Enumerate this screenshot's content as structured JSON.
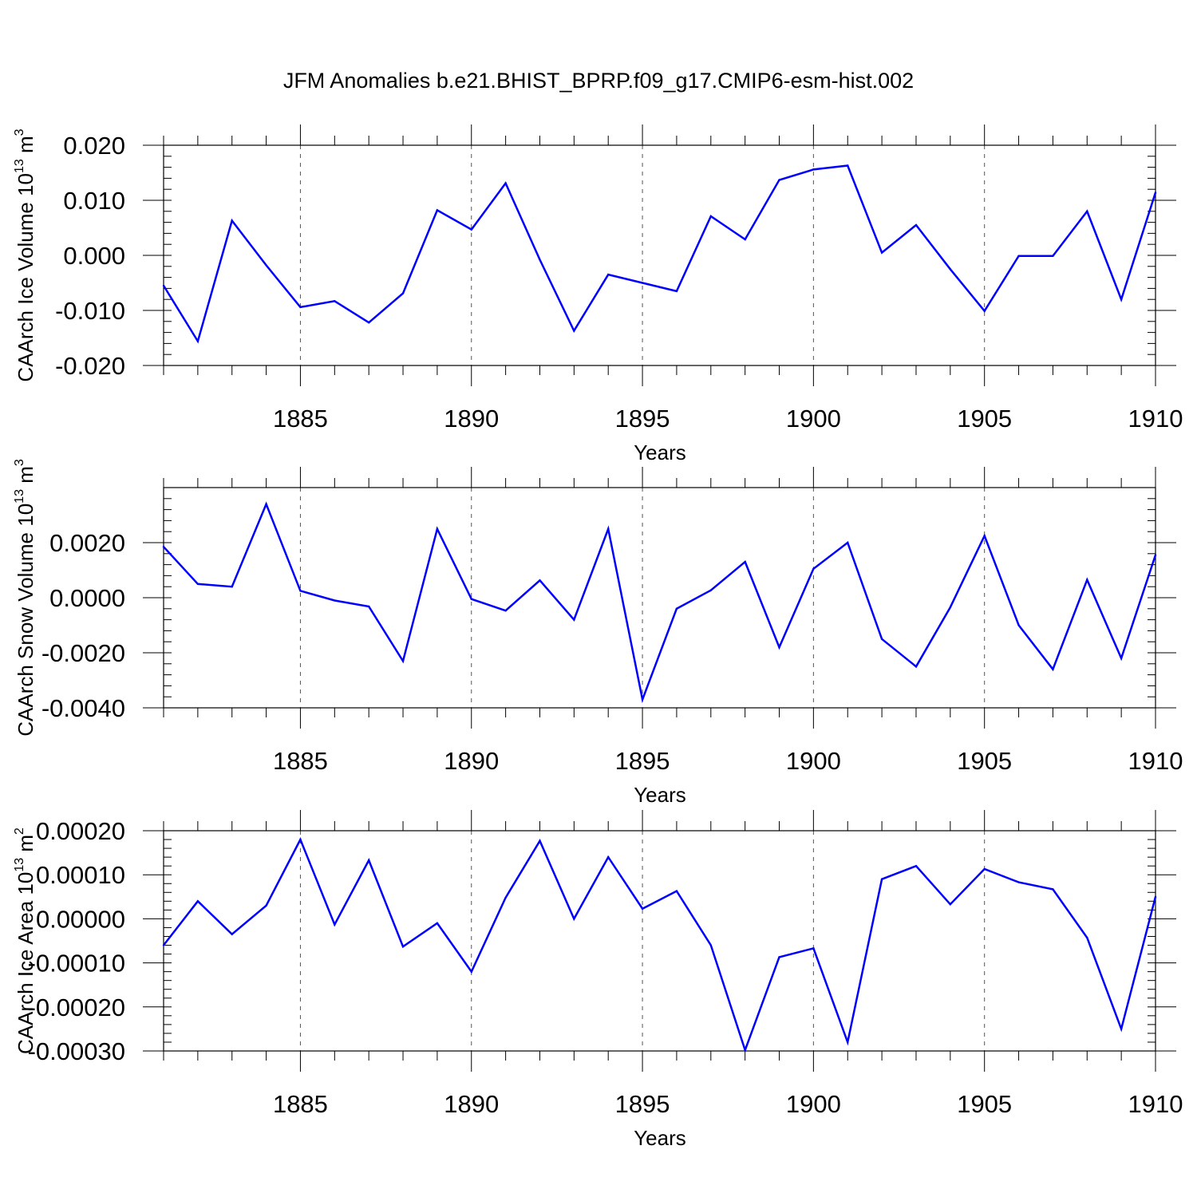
{
  "title": "JFM Anomalies b.e21.BHIST_BPRP.f09_g17.CMIP6-esm-hist.002",
  "colors": {
    "series": "#0000ff",
    "axis": "#000000",
    "grid": "#555555"
  },
  "chart_data": [
    {
      "type": "line",
      "ylabel": "CAArch Ice Volume 10",
      "ylabel_sup": "13",
      "ylabel_unit": "m",
      "ylabel_unit_sup": "3",
      "xlabel": "Years",
      "xlim": [
        1881,
        1910
      ],
      "ylim": [
        -0.02,
        0.02
      ],
      "xticks": [
        1885,
        1890,
        1895,
        1900,
        1905,
        1910
      ],
      "xtick_labels": [
        "1885",
        "1890",
        "1895",
        "1900",
        "1905",
        "1910"
      ],
      "yticks": [
        -0.02,
        -0.01,
        0.0,
        0.01,
        0.02
      ],
      "ytick_labels": [
        "-0.020",
        "-0.010",
        "0.000",
        "0.010",
        "0.020"
      ],
      "x": [
        1881,
        1882,
        1883,
        1884,
        1885,
        1886,
        1887,
        1888,
        1889,
        1890,
        1891,
        1892,
        1893,
        1894,
        1895,
        1896,
        1897,
        1898,
        1899,
        1900,
        1901,
        1902,
        1903,
        1904,
        1905,
        1906,
        1907,
        1908,
        1909,
        1910
      ],
      "values": [
        -0.0055,
        -0.0156,
        0.0063,
        -0.0018,
        -0.0094,
        -0.0083,
        -0.0122,
        -0.0069,
        0.0082,
        0.0047,
        0.0131,
        -0.0008,
        -0.0137,
        -0.0035,
        -0.005,
        -0.0065,
        0.0071,
        0.0029,
        0.0137,
        0.0156,
        0.0163,
        0.0005,
        0.0055,
        -0.0025,
        -0.0101,
        -0.0001,
        -0.0001,
        0.008,
        -0.008,
        0.0114
      ]
    },
    {
      "type": "line",
      "ylabel": "CAArch Snow Volume 10",
      "ylabel_sup": "13",
      "ylabel_unit": "m",
      "ylabel_unit_sup": "3",
      "xlabel": "Years",
      "xlim": [
        1881,
        1910
      ],
      "ylim": [
        -0.004,
        0.004
      ],
      "xticks": [
        1885,
        1890,
        1895,
        1900,
        1905,
        1910
      ],
      "xtick_labels": [
        "1885",
        "1890",
        "1895",
        "1900",
        "1905",
        "1910"
      ],
      "yticks": [
        -0.004,
        -0.002,
        0.0,
        0.002
      ],
      "ytick_labels": [
        "-0.0040",
        "-0.0020",
        "0.0000",
        "0.0020"
      ],
      "x": [
        1881,
        1882,
        1883,
        1884,
        1885,
        1886,
        1887,
        1888,
        1889,
        1890,
        1891,
        1892,
        1893,
        1894,
        1895,
        1896,
        1897,
        1898,
        1899,
        1900,
        1901,
        1902,
        1903,
        1904,
        1905,
        1906,
        1907,
        1908,
        1909,
        1910
      ],
      "values": [
        0.00185,
        0.0005,
        0.0004,
        0.0034,
        0.00025,
        -0.0001,
        -0.00032,
        -0.0023,
        0.0025,
        -5e-05,
        -0.00047,
        0.00063,
        -0.0008,
        0.0025,
        -0.0037,
        -0.0004,
        0.00027,
        0.0013,
        -0.0018,
        0.00105,
        0.002,
        -0.0015,
        -0.0025,
        -0.00035,
        0.00225,
        -0.001,
        -0.0026,
        0.00065,
        -0.0022,
        0.00155
      ]
    },
    {
      "type": "line",
      "ylabel": "CAArch Ice Area 10",
      "ylabel_sup": "13",
      "ylabel_unit": "m",
      "ylabel_unit_sup": "2",
      "xlabel": "Years",
      "xlim": [
        1881,
        1910
      ],
      "ylim": [
        -0.0003,
        0.0002
      ],
      "xticks": [
        1885,
        1890,
        1895,
        1900,
        1905,
        1910
      ],
      "xtick_labels": [
        "1885",
        "1890",
        "1895",
        "1900",
        "1905",
        "1910"
      ],
      "yticks": [
        -0.0003,
        -0.0002,
        -0.0001,
        0.0,
        0.0001,
        0.0002
      ],
      "ytick_labels": [
        "-0.00030",
        "-0.00020",
        "-0.00010",
        "0.00000",
        "0.00010",
        "0.00020"
      ],
      "x": [
        1881,
        1882,
        1883,
        1884,
        1885,
        1886,
        1887,
        1888,
        1889,
        1890,
        1891,
        1892,
        1893,
        1894,
        1895,
        1896,
        1897,
        1898,
        1899,
        1900,
        1901,
        1902,
        1903,
        1904,
        1905,
        1906,
        1907,
        1908,
        1909,
        1910
      ],
      "values": [
        -6e-05,
        4e-05,
        -3.5e-05,
        3e-05,
        0.00018,
        -1.3e-05,
        0.000133,
        -6.3e-05,
        -1e-05,
        -0.00012,
        4.8e-05,
        0.000177,
        0.0,
        0.00014,
        2.3e-05,
        6.3e-05,
        -6e-05,
        -0.000298,
        -8.7e-05,
        -6.7e-05,
        -0.00028,
        9e-05,
        0.00012,
        3.3e-05,
        0.000113,
        8.3e-05,
        6.7e-05,
        -4.3e-05,
        -0.00025,
        5e-05
      ]
    }
  ]
}
